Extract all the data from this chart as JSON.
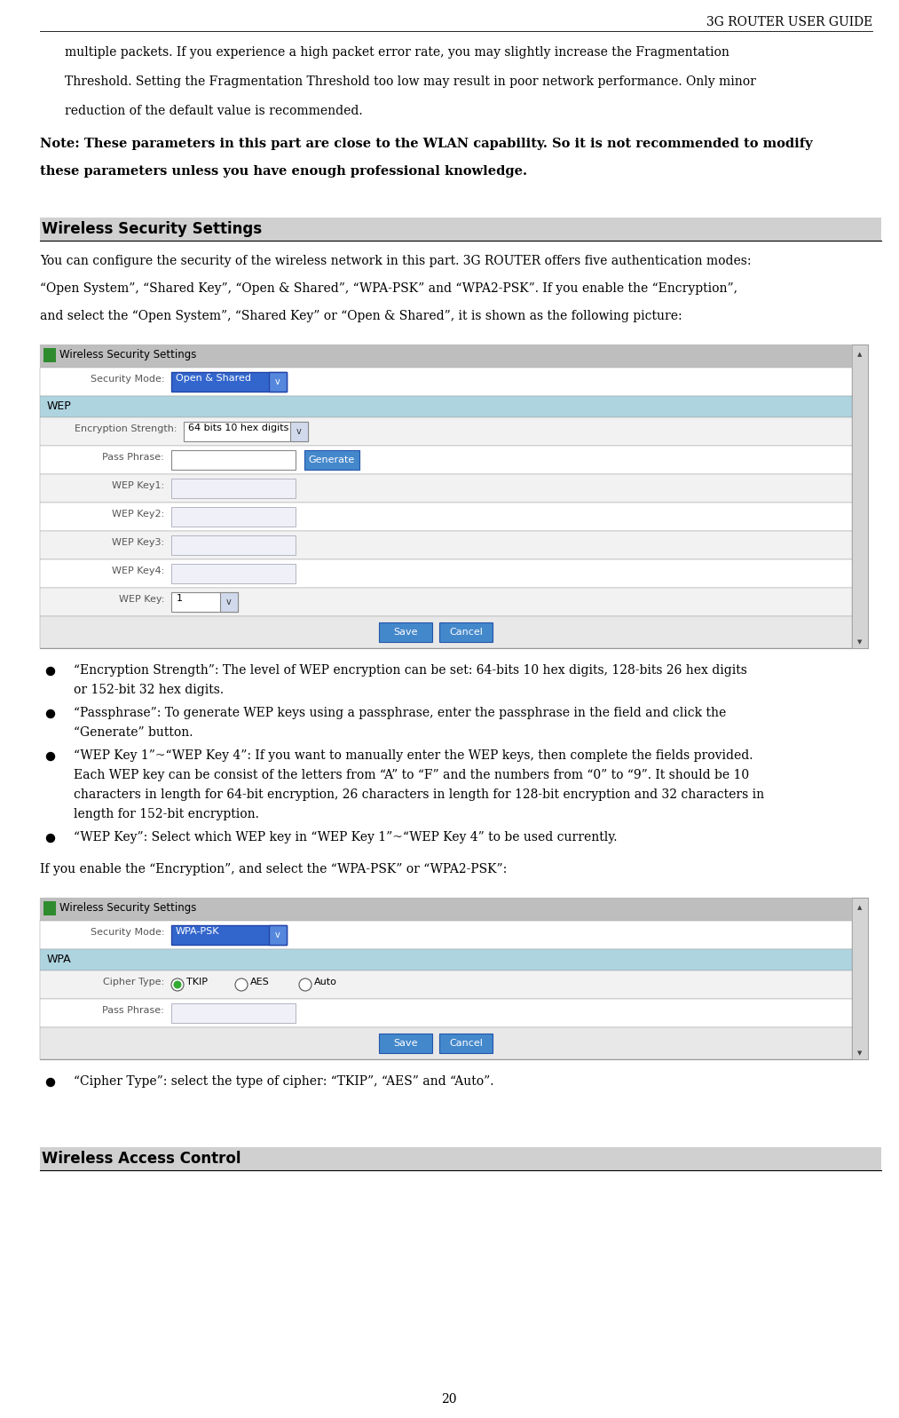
{
  "title_header": "3G ROUTER USER GUIDE",
  "page_number": "20",
  "bg_color": "#ffffff",
  "figsize": [
    10.13,
    15.97
  ],
  "dpi": 100,
  "intro_lines": [
    "multiple packets. If you experience a high packet error rate, you may slightly increase the Fragmentation",
    "Threshold. Setting the Fragmentation Threshold too low may result in poor network performance. Only minor",
    "reduction of the default value is recommended."
  ],
  "note_line1": "Note: These parameters in this part are close to the WLAN capability. So it is not recommended to modify",
  "note_line2": "these parameters unless you have enough professional knowledge.",
  "section1_title": "Wireless Security Settings",
  "section1_intro": [
    "You can configure the security of the wireless network in this part. 3G ROUTER offers five authentication modes:",
    "“Open System”, “Shared Key”, “Open & Shared”, “WPA-PSK” and “WPA2-PSK”. If you enable the “Encryption”,",
    "and select the “Open System”, “Shared Key” or “Open & Shared”, it is shown as the following picture:"
  ],
  "gui1_title": "Wireless Security Settings",
  "gui1_security_mode_label": "Security Mode:",
  "gui1_security_mode_value": "Open & Shared",
  "gui1_wep_label": "WEP",
  "gui1_enc_strength_label": "Encryption Strength:",
  "gui1_enc_strength_value": "64 bits 10 hex digits",
  "gui1_passphrase_label": "Pass Phrase:",
  "gui1_wep_keys": [
    "WEP Key1:",
    "WEP Key2:",
    "WEP Key3:",
    "WEP Key4:"
  ],
  "gui1_wep_key_label": "WEP Key:",
  "gui1_wep_key_value": "1",
  "bullets_section1": [
    [
      "“Encryption Strength”: The level of WEP encryption can be set: 64-bits 10 hex digits, 128-bits 26 hex digits",
      "or 152-bit 32 hex digits."
    ],
    [
      "“Passphrase”: To generate WEP keys using a passphrase, enter the passphrase in the field and click the",
      "“Generate” button."
    ],
    [
      "“WEP Key 1”~“WEP Key 4”: If you want to manually enter the WEP keys, then complete the fields provided.",
      "Each WEP key can be consist of the letters from “A” to “F” and the numbers from “0” to “9”. It should be 10",
      "characters in length for 64-bit encryption, 26 characters in length for 128-bit encryption and 32 characters in",
      "length for 152-bit encryption."
    ],
    [
      "“WEP Key”: Select which WEP key in “WEP Key 1”~“WEP Key 4” to be used currently."
    ]
  ],
  "wpa_intro": "If you enable the “Encryption”, and select the “WPA-PSK” or “WPA2-PSK”:",
  "gui2_title": "Wireless Security Settings",
  "gui2_security_mode_label": "Security Mode:",
  "gui2_security_mode_value": "WPA-PSK",
  "gui2_wpa_label": "WPA",
  "gui2_cipher_label": "Cipher Type:",
  "gui2_passphrase_label": "Pass Phrase:",
  "bullets_section2": [
    [
      "“Cipher Type”: select the type of cipher: “TKIP”, “AES” and “Auto”."
    ]
  ],
  "section2_title": "Wireless Access Control",
  "colors": {
    "gui_header_bg": "#bebebe",
    "gui_header_icon": "#2e8b2e",
    "gui_border": "#999999",
    "gui_dropdown_bg": "#3366cc",
    "gui_dropdown_text": "#ffffff",
    "gui_wep_section_bg": "#aed4e0",
    "gui_button_bg": "#4488cc",
    "gui_button_text": "#ffffff",
    "gui_scrollbar_bg": "#d4d4d4",
    "section_header_bg": "#d0d0d0",
    "gui_row_white": "#ffffff",
    "gui_row_light": "#f2f2f2",
    "radio_selected_color": "#33aa33"
  }
}
